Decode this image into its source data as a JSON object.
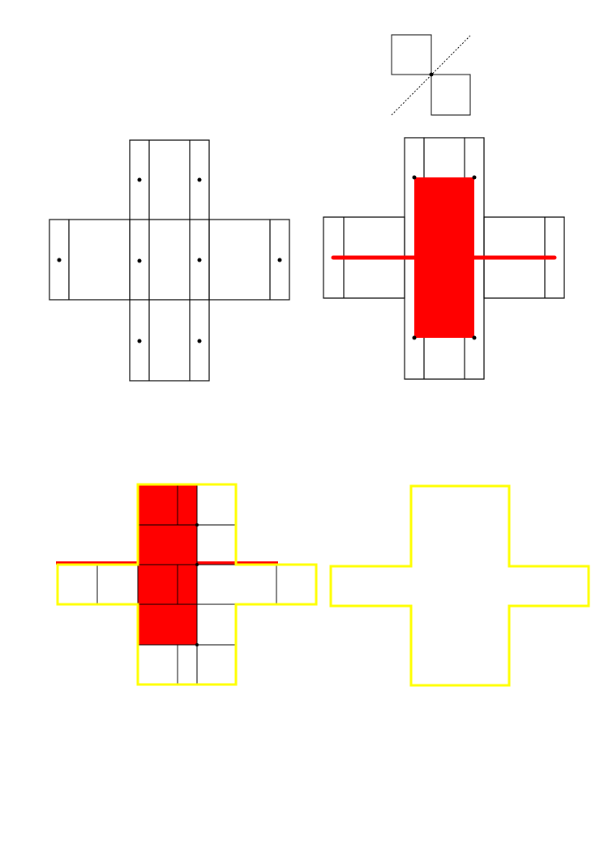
{
  "colors": {
    "background": "#ffffff",
    "line": "#000000",
    "fill": "#ff0000",
    "outline": "#ffff00",
    "dot": "#000000"
  },
  "figures": [
    {
      "name": "hinged-squares",
      "description_shapes": [
        "square",
        "square",
        "dotted-diagonal",
        "hinge-dot"
      ]
    },
    {
      "name": "cross-with-dots"
    },
    {
      "name": "cross-with-red-rectangle"
    },
    {
      "name": "cross-grid-yellow-outline"
    },
    {
      "name": "yellow-cross-outline"
    }
  ]
}
